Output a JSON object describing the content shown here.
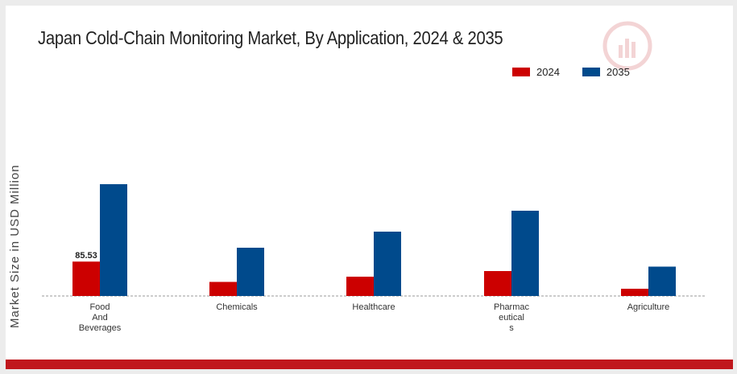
{
  "chart_data": {
    "type": "bar",
    "title": "Japan Cold-Chain Monitoring Market, By Application, 2024 & 2035",
    "ylabel": "Market Size in USD Million",
    "xlabel": "",
    "categories": [
      [
        "Food",
        "And",
        "Beverages"
      ],
      [
        "Chemicals"
      ],
      [
        "Healthcare"
      ],
      [
        "Pharmac",
        "eutical",
        "s"
      ],
      [
        "Agriculture"
      ]
    ],
    "series": [
      {
        "name": "2024",
        "color": "#cc0000",
        "values": [
          85.53,
          35.0,
          48.0,
          62.0,
          18.0
        ]
      },
      {
        "name": "2035",
        "color": "#004a8c",
        "values": [
          278.0,
          120.0,
          160.0,
          212.0,
          73.0
        ]
      }
    ],
    "data_labels": [
      {
        "series": 0,
        "index": 0,
        "text": "85.53"
      }
    ],
    "ylim": [
      0,
      300
    ],
    "grid": false,
    "legend_position": "top-right"
  }
}
